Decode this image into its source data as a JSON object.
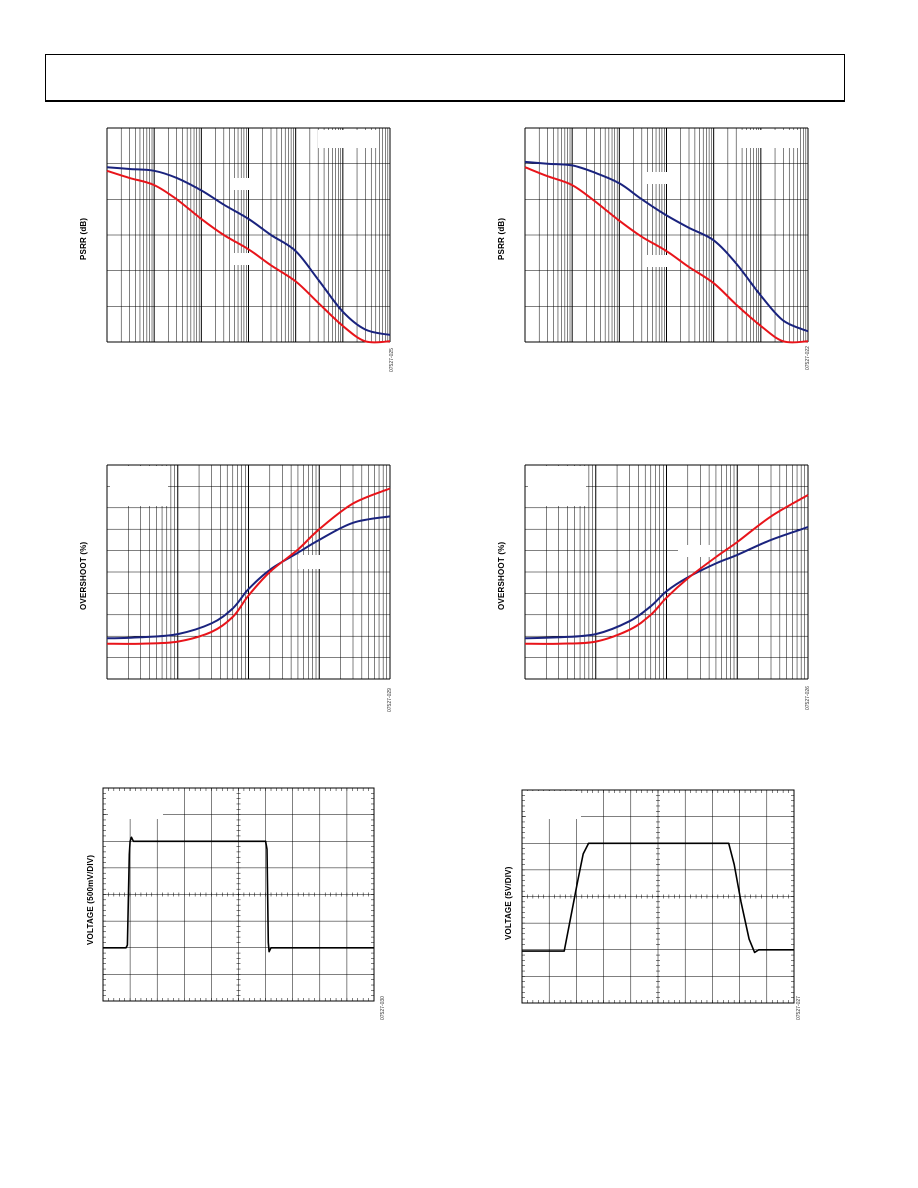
{
  "colors": {
    "blue": "#1a237e",
    "red": "#e8141a",
    "trace": "#000000",
    "grid": "#000000"
  },
  "chart_data": [
    {
      "id": "psrr-left",
      "type": "line",
      "ylabel": "PSRR (dB)",
      "fig_code": "07527-025",
      "xscale": "log",
      "xlim": [
        10,
        10000000
      ],
      "ylim": [
        0,
        6
      ],
      "x_divisions_log_decades": 6,
      "y_divisions": 6,
      "series": [
        {
          "color_key": "blue",
          "points": [
            [
              10,
              4.9
            ],
            [
              30,
              4.85
            ],
            [
              100,
              4.8
            ],
            [
              300,
              4.6
            ],
            [
              1000,
              4.25
            ],
            [
              3000,
              3.85
            ],
            [
              10000,
              3.45
            ],
            [
              30000,
              3.0
            ],
            [
              100000,
              2.55
            ],
            [
              300000,
              1.75
            ],
            [
              1000000,
              0.85
            ],
            [
              3000000,
              0.35
            ],
            [
              10000000,
              0.2
            ]
          ]
        },
        {
          "color_key": "red",
          "points": [
            [
              10,
              4.8
            ],
            [
              30,
              4.6
            ],
            [
              100,
              4.4
            ],
            [
              300,
              4.0
            ],
            [
              1000,
              3.45
            ],
            [
              3000,
              3.0
            ],
            [
              10000,
              2.6
            ],
            [
              30000,
              2.15
            ],
            [
              100000,
              1.7
            ],
            [
              300000,
              1.1
            ],
            [
              1000000,
              0.45
            ],
            [
              3000000,
              0.02
            ],
            [
              10000000,
              0.02
            ]
          ]
        }
      ]
    },
    {
      "id": "psrr-right",
      "type": "line",
      "ylabel": "PSRR (dB)",
      "fig_code": "07527-022",
      "xscale": "log",
      "xlim": [
        10,
        10000000
      ],
      "ylim": [
        0,
        6
      ],
      "x_divisions_log_decades": 6,
      "y_divisions": 6,
      "series": [
        {
          "color_key": "blue",
          "points": [
            [
              10,
              5.05
            ],
            [
              30,
              5.0
            ],
            [
              100,
              4.95
            ],
            [
              300,
              4.75
            ],
            [
              1000,
              4.45
            ],
            [
              3000,
              4.0
            ],
            [
              10000,
              3.55
            ],
            [
              30000,
              3.2
            ],
            [
              100000,
              2.85
            ],
            [
              300000,
              2.2
            ],
            [
              1000000,
              1.3
            ],
            [
              3000000,
              0.6
            ],
            [
              10000000,
              0.3
            ]
          ]
        },
        {
          "color_key": "red",
          "points": [
            [
              10,
              4.9
            ],
            [
              30,
              4.65
            ],
            [
              100,
              4.4
            ],
            [
              300,
              3.95
            ],
            [
              1000,
              3.4
            ],
            [
              3000,
              2.95
            ],
            [
              10000,
              2.55
            ],
            [
              30000,
              2.1
            ],
            [
              100000,
              1.65
            ],
            [
              300000,
              1.05
            ],
            [
              1000000,
              0.45
            ],
            [
              3000000,
              0.02
            ],
            [
              10000000,
              0.02
            ]
          ]
        }
      ]
    },
    {
      "id": "overshoot-left",
      "type": "line",
      "ylabel": "OVERSHOOT (%)",
      "fig_code": "07527-029",
      "xscale": "log",
      "xlim": [
        1,
        10000
      ],
      "ylim": [
        0,
        10
      ],
      "x_divisions_log_decades": 4,
      "y_divisions": 10,
      "series": [
        {
          "color_key": "blue",
          "points": [
            [
              1,
              1.9
            ],
            [
              3,
              1.95
            ],
            [
              10,
              2.1
            ],
            [
              30,
              2.6
            ],
            [
              60,
              3.3
            ],
            [
              100,
              4.2
            ],
            [
              200,
              5.1
            ],
            [
              500,
              5.9
            ],
            [
              1000,
              6.5
            ],
            [
              3000,
              7.3
            ],
            [
              10000,
              7.6
            ]
          ]
        },
        {
          "color_key": "red",
          "points": [
            [
              1,
              1.65
            ],
            [
              3,
              1.65
            ],
            [
              10,
              1.75
            ],
            [
              30,
              2.2
            ],
            [
              60,
              2.9
            ],
            [
              100,
              3.9
            ],
            [
              200,
              5.0
            ],
            [
              500,
              6.05
            ],
            [
              1000,
              7.0
            ],
            [
              3000,
              8.2
            ],
            [
              10000,
              8.9
            ]
          ]
        }
      ]
    },
    {
      "id": "overshoot-right",
      "type": "line",
      "ylabel": "OVERSHOOT (%)",
      "fig_code": "07527-026",
      "xscale": "log",
      "xlim": [
        1,
        10000
      ],
      "ylim": [
        0,
        10
      ],
      "x_divisions_log_decades": 4,
      "y_divisions": 10,
      "series": [
        {
          "color_key": "blue",
          "points": [
            [
              1,
              1.9
            ],
            [
              3,
              1.95
            ],
            [
              10,
              2.1
            ],
            [
              30,
              2.7
            ],
            [
              60,
              3.4
            ],
            [
              100,
              4.1
            ],
            [
              200,
              4.75
            ],
            [
              500,
              5.4
            ],
            [
              1000,
              5.8
            ],
            [
              3000,
              6.5
            ],
            [
              10000,
              7.1
            ]
          ]
        },
        {
          "color_key": "red",
          "points": [
            [
              1,
              1.65
            ],
            [
              3,
              1.65
            ],
            [
              10,
              1.75
            ],
            [
              30,
              2.3
            ],
            [
              60,
              3.0
            ],
            [
              100,
              3.8
            ],
            [
              200,
              4.7
            ],
            [
              500,
              5.7
            ],
            [
              1000,
              6.4
            ],
            [
              3000,
              7.6
            ],
            [
              10000,
              8.6
            ]
          ]
        }
      ]
    },
    {
      "id": "pulse-left",
      "type": "line",
      "ylabel": "VOLTAGE (500mV/DIV)",
      "fig_code": "07527-030",
      "xlim": [
        0,
        10
      ],
      "ylim": [
        0,
        8
      ],
      "x_divisions": 10,
      "y_divisions": 8,
      "series": [
        {
          "color_key": "trace",
          "points": [
            [
              0,
              2.0
            ],
            [
              0.85,
              2.0
            ],
            [
              0.9,
              2.1
            ],
            [
              0.97,
              5.5
            ],
            [
              1.0,
              6.0
            ],
            [
              1.05,
              6.15
            ],
            [
              1.12,
              6.0
            ],
            [
              6.0,
              6.0
            ],
            [
              6.05,
              5.7
            ],
            [
              6.1,
              2.2
            ],
            [
              6.13,
              1.85
            ],
            [
              6.2,
              2.0
            ],
            [
              10,
              2.0
            ]
          ]
        }
      ]
    },
    {
      "id": "pulse-right",
      "type": "line",
      "ylabel": "VOLTAGE (5V/DIV)",
      "fig_code": "07527-027",
      "xlim": [
        0,
        10
      ],
      "ylim": [
        0,
        8
      ],
      "x_divisions": 10,
      "y_divisions": 8,
      "series": [
        {
          "color_key": "trace",
          "points": [
            [
              0,
              1.95
            ],
            [
              1.55,
              1.95
            ],
            [
              1.75,
              3.0
            ],
            [
              2.05,
              4.6
            ],
            [
              2.25,
              5.6
            ],
            [
              2.45,
              6.0
            ],
            [
              7.6,
              6.0
            ],
            [
              7.8,
              5.2
            ],
            [
              8.05,
              3.8
            ],
            [
              8.35,
              2.4
            ],
            [
              8.55,
              1.9
            ],
            [
              8.7,
              2.0
            ],
            [
              10,
              2.0
            ]
          ]
        }
      ]
    }
  ]
}
